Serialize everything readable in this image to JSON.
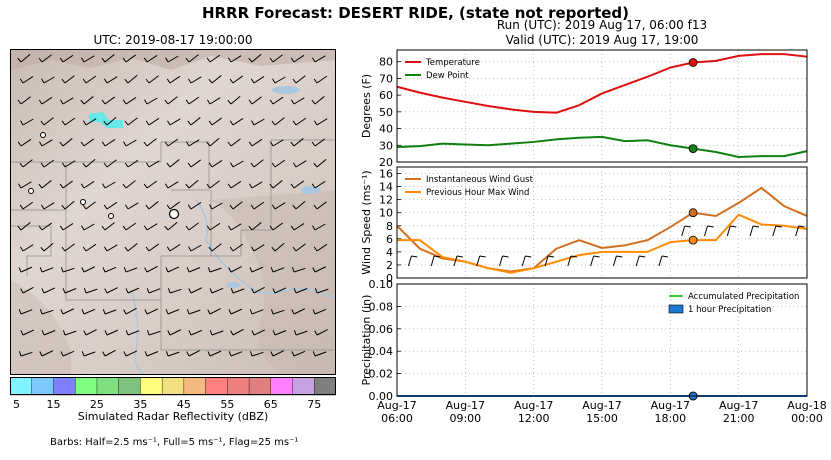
{
  "header": {
    "title": "HRRR Forecast: DESERT RIDE, (state not reported)",
    "run_line": "Run (UTC): 2019 Aug 17, 06:00 f13",
    "valid_line": "Valid (UTC): 2019 Aug 17, 19:00"
  },
  "map": {
    "title": "UTC: 2019-08-17 19:00:00",
    "colorbar_label": "Simulated Radar Reflectivity (dBZ)",
    "colorbar_ticks": [
      "5",
      "15",
      "25",
      "35",
      "45",
      "55",
      "65",
      "75"
    ],
    "colorbar_colors": [
      "#7ff3ff",
      "#7bc8ff",
      "#7f7fff",
      "#7fff7f",
      "#7fe07f",
      "#7fc07f",
      "#ffff7f",
      "#f4df7f",
      "#f5b87f",
      "#ff7f7f",
      "#ef7f7f",
      "#e07f7f",
      "#ff7fff",
      "#c6a3e0",
      "#7f7f7f"
    ],
    "barbs_note": "Barbs: Half=2.5 ms⁻¹, Full=5 ms⁻¹, Flag=25 ms⁻¹",
    "colors": {
      "terrain": "#ddd2cc",
      "water": "#a9c8df",
      "barb": "#000000",
      "radar_echo": "#7ff3ff"
    }
  },
  "x_ticks": [
    "Aug-17\n06:00",
    "Aug-17\n09:00",
    "Aug-17\n12:00",
    "Aug-17\n15:00",
    "Aug-17\n18:00",
    "Aug-17\n21:00",
    "Aug-18\n00:00"
  ],
  "chart_data": [
    {
      "type": "line",
      "ylabel": "Degrees (F)",
      "ylim": [
        20,
        87
      ],
      "yticks": [
        "20",
        "30",
        "40",
        "50",
        "60",
        "70",
        "80"
      ],
      "x_hours": [
        0,
        1,
        2,
        3,
        4,
        5,
        6,
        7,
        8,
        9,
        10,
        11,
        12,
        13,
        14,
        15,
        16,
        17,
        18
      ],
      "legend": "upper left",
      "valid_hour": 13,
      "series": [
        {
          "name": "Temperature",
          "color": "#e01010",
          "values": [
            65,
            61.5,
            58.5,
            56,
            53.5,
            51.5,
            50,
            49.5,
            54,
            61,
            66,
            71,
            76.5,
            79.5,
            80.5,
            83.5,
            84.5,
            84.5,
            83
          ]
        },
        {
          "name": "Dew Point",
          "color": "#108010",
          "values": [
            29,
            29.5,
            31,
            30.5,
            30,
            31,
            32,
            33.5,
            34.5,
            35,
            32.5,
            33,
            30,
            28,
            26,
            23,
            23.5,
            23.5,
            26.5
          ]
        }
      ]
    },
    {
      "type": "line",
      "ylabel": "Wind Speed (ms⁻¹)",
      "ylim": [
        0,
        17
      ],
      "yticks": [
        "0",
        "2",
        "4",
        "6",
        "8",
        "10",
        "12",
        "14",
        "16"
      ],
      "x_hours": [
        0,
        1,
        2,
        3,
        4,
        5,
        6,
        7,
        8,
        9,
        10,
        11,
        12,
        13,
        14,
        15,
        16,
        17,
        18
      ],
      "legend": "upper left",
      "valid_hour": 13,
      "series": [
        {
          "name": "Instantaneous Wind Gust",
          "color": "#d07020",
          "values": [
            8,
            4.5,
            3,
            2.5,
            1.5,
            1,
            1.5,
            4.5,
            5.8,
            4.6,
            5,
            5.8,
            7.8,
            10,
            9.5,
            11.5,
            13.8,
            11,
            9.5
          ]
        },
        {
          "name": "Previous Hour Max Wind",
          "color": "#ff8c00",
          "values": [
            5.8,
            5.8,
            3.2,
            2.5,
            1.5,
            0.8,
            1.5,
            2.5,
            3.5,
            4,
            4,
            4,
            5.5,
            5.8,
            5.8,
            9.7,
            8.2,
            8,
            7.5
          ]
        }
      ]
    },
    {
      "type": "area",
      "ylabel": "Precipitation (in)",
      "ylim": [
        0,
        0.1
      ],
      "yticks": [
        "0.00",
        "0.02",
        "0.04",
        "0.06",
        "0.08",
        "0.10"
      ],
      "x_hours": [
        0,
        1,
        2,
        3,
        4,
        5,
        6,
        7,
        8,
        9,
        10,
        11,
        12,
        13,
        14,
        15,
        16,
        17,
        18
      ],
      "legend": "upper right",
      "valid_hour": 13,
      "series": [
        {
          "name": "Accumulated Precipitation",
          "color": "#33cc33",
          "values": [
            0,
            0,
            0,
            0,
            0,
            0,
            0,
            0,
            0,
            0,
            0,
            0,
            0,
            0,
            0,
            0,
            0,
            0,
            0
          ]
        },
        {
          "name": "1 hour Precipitation",
          "color": "#1e78d0",
          "values": [
            0,
            0,
            0,
            0,
            0,
            0,
            0,
            0,
            0,
            0,
            0,
            0,
            0,
            0,
            0,
            0,
            0,
            0,
            0
          ]
        }
      ]
    }
  ]
}
